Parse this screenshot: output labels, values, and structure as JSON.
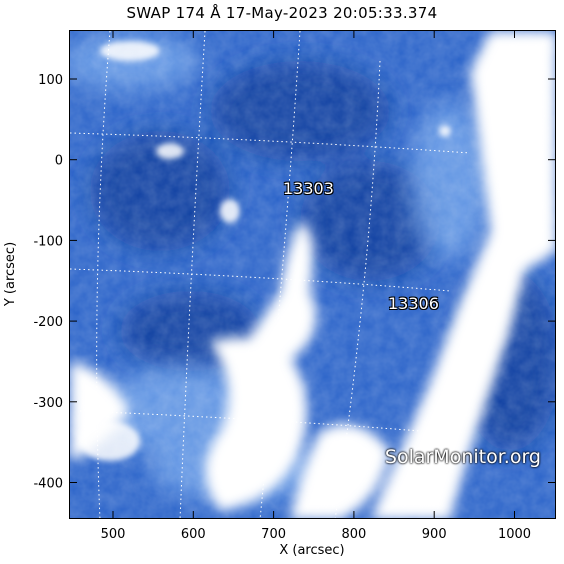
{
  "title": "SWAP 174 Å 17-May-2023 20:05:33.374",
  "x_axis": {
    "label": "X (arcsec)",
    "ticks": [
      500,
      600,
      700,
      800,
      900,
      1000
    ]
  },
  "y_axis": {
    "label": "Y (arcsec)",
    "ticks": [
      100,
      0,
      -100,
      -200,
      -300,
      -400
    ]
  },
  "regions": [
    {
      "label": "13303",
      "x_arcsec": 730,
      "y_arcsec": -35
    },
    {
      "label": "13306",
      "x_arcsec": 880,
      "y_arcsec": -180
    }
  ],
  "watermark": "SolarMonitor.org",
  "colors": {
    "background": "#1e5bc3",
    "bright": "#ffffff",
    "grid": "#ffffff"
  }
}
